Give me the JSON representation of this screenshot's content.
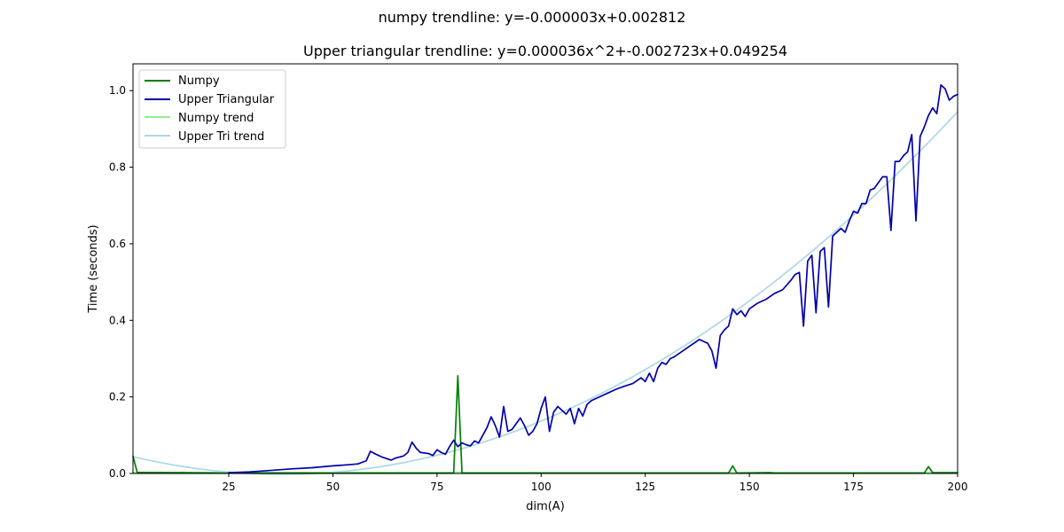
{
  "chart_data": {
    "type": "line",
    "title": "numpy trendline: y=-0.000003x+0.002812",
    "subtitle": "Upper triangular trendline: y=0.000036x^2+-0.002723x+0.049254",
    "xlabel": "dim(A)",
    "ylabel": "Time (seconds)",
    "xlim": [
      2,
      200
    ],
    "ylim": [
      0,
      1.07
    ],
    "xticks": [
      25,
      50,
      75,
      100,
      125,
      150,
      175,
      200
    ],
    "yticks": [
      0.0,
      0.2,
      0.4,
      0.6,
      0.8,
      1.0
    ],
    "xtick_labels": [
      "25",
      "50",
      "75",
      "100",
      "125",
      "150",
      "175",
      "200"
    ],
    "ytick_labels": [
      "0.0",
      "0.2",
      "0.4",
      "0.6",
      "0.8",
      "1.0"
    ],
    "grid": false,
    "legend_position": "top-left",
    "series": [
      {
        "name": "Numpy",
        "color": "#008000",
        "points": [
          [
            2,
            0.045
          ],
          [
            3,
            0.003
          ],
          [
            25,
            0.001
          ],
          [
            50,
            0.001
          ],
          [
            75,
            0.001
          ],
          [
            79,
            0.001
          ],
          [
            80,
            0.255
          ],
          [
            81,
            0.001
          ],
          [
            100,
            0.001
          ],
          [
            125,
            0.001
          ],
          [
            145,
            0.001
          ],
          [
            146,
            0.02
          ],
          [
            147,
            0.001
          ],
          [
            155,
            0.002
          ],
          [
            156,
            0.001
          ],
          [
            175,
            0.001
          ],
          [
            192,
            0.001
          ],
          [
            193,
            0.018
          ],
          [
            194,
            0.002
          ],
          [
            200,
            0.002
          ]
        ]
      },
      {
        "name": "Upper Triangular",
        "color": "#0000aa",
        "points": [
          [
            25,
            0.002
          ],
          [
            30,
            0.004
          ],
          [
            35,
            0.008
          ],
          [
            40,
            0.012
          ],
          [
            45,
            0.015
          ],
          [
            50,
            0.02
          ],
          [
            54,
            0.023
          ],
          [
            56,
            0.025
          ],
          [
            58,
            0.033
          ],
          [
            59,
            0.058
          ],
          [
            60,
            0.052
          ],
          [
            62,
            0.042
          ],
          [
            64,
            0.035
          ],
          [
            65,
            0.04
          ],
          [
            67,
            0.046
          ],
          [
            68,
            0.055
          ],
          [
            69,
            0.082
          ],
          [
            70,
            0.066
          ],
          [
            71,
            0.055
          ],
          [
            73,
            0.052
          ],
          [
            74,
            0.047
          ],
          [
            75,
            0.062
          ],
          [
            76,
            0.055
          ],
          [
            77,
            0.05
          ],
          [
            78,
            0.07
          ],
          [
            79,
            0.087
          ],
          [
            80,
            0.07
          ],
          [
            81,
            0.08
          ],
          [
            82,
            0.075
          ],
          [
            83,
            0.072
          ],
          [
            84,
            0.085
          ],
          [
            85,
            0.08
          ],
          [
            86,
            0.1
          ],
          [
            87,
            0.12
          ],
          [
            88,
            0.148
          ],
          [
            89,
            0.125
          ],
          [
            90,
            0.095
          ],
          [
            91,
            0.175
          ],
          [
            92,
            0.11
          ],
          [
            93,
            0.115
          ],
          [
            94,
            0.13
          ],
          [
            95,
            0.145
          ],
          [
            96,
            0.125
          ],
          [
            97,
            0.1
          ],
          [
            98,
            0.11
          ],
          [
            99,
            0.13
          ],
          [
            100,
            0.17
          ],
          [
            101,
            0.2
          ],
          [
            102,
            0.11
          ],
          [
            103,
            0.16
          ],
          [
            104,
            0.175
          ],
          [
            105,
            0.165
          ],
          [
            106,
            0.155
          ],
          [
            107,
            0.17
          ],
          [
            108,
            0.13
          ],
          [
            109,
            0.17
          ],
          [
            110,
            0.15
          ],
          [
            111,
            0.18
          ],
          [
            112,
            0.19
          ],
          [
            114,
            0.2
          ],
          [
            116,
            0.21
          ],
          [
            118,
            0.22
          ],
          [
            120,
            0.228
          ],
          [
            122,
            0.235
          ],
          [
            124,
            0.25
          ],
          [
            125,
            0.24
          ],
          [
            126,
            0.262
          ],
          [
            127,
            0.24
          ],
          [
            128,
            0.275
          ],
          [
            129,
            0.29
          ],
          [
            130,
            0.285
          ],
          [
            131,
            0.3
          ],
          [
            132,
            0.305
          ],
          [
            134,
            0.32
          ],
          [
            136,
            0.335
          ],
          [
            138,
            0.35
          ],
          [
            140,
            0.34
          ],
          [
            141,
            0.32
          ],
          [
            142,
            0.275
          ],
          [
            143,
            0.36
          ],
          [
            144,
            0.375
          ],
          [
            145,
            0.385
          ],
          [
            146,
            0.43
          ],
          [
            147,
            0.415
          ],
          [
            148,
            0.425
          ],
          [
            149,
            0.41
          ],
          [
            150,
            0.43
          ],
          [
            152,
            0.445
          ],
          [
            154,
            0.455
          ],
          [
            156,
            0.47
          ],
          [
            158,
            0.48
          ],
          [
            160,
            0.505
          ],
          [
            161,
            0.52
          ],
          [
            162,
            0.525
          ],
          [
            163,
            0.385
          ],
          [
            164,
            0.555
          ],
          [
            165,
            0.57
          ],
          [
            166,
            0.42
          ],
          [
            167,
            0.58
          ],
          [
            168,
            0.59
          ],
          [
            169,
            0.435
          ],
          [
            170,
            0.62
          ],
          [
            172,
            0.64
          ],
          [
            173,
            0.63
          ],
          [
            174,
            0.66
          ],
          [
            175,
            0.685
          ],
          [
            176,
            0.68
          ],
          [
            177,
            0.705
          ],
          [
            178,
            0.705
          ],
          [
            179,
            0.74
          ],
          [
            180,
            0.745
          ],
          [
            181,
            0.76
          ],
          [
            182,
            0.775
          ],
          [
            183,
            0.775
          ],
          [
            184,
            0.635
          ],
          [
            185,
            0.815
          ],
          [
            186,
            0.815
          ],
          [
            187,
            0.83
          ],
          [
            188,
            0.84
          ],
          [
            189,
            0.885
          ],
          [
            190,
            0.66
          ],
          [
            191,
            0.88
          ],
          [
            192,
            0.905
          ],
          [
            193,
            0.935
          ],
          [
            194,
            0.955
          ],
          [
            195,
            0.94
          ],
          [
            196,
            1.015
          ],
          [
            197,
            1.005
          ],
          [
            198,
            0.975
          ],
          [
            199,
            0.985
          ],
          [
            200,
            0.99
          ]
        ]
      },
      {
        "name": "Numpy trend",
        "color": "#90ee90",
        "coefficients": [
          -3e-06,
          0.002812
        ]
      },
      {
        "name": "Upper Tri trend",
        "color": "#add8e6",
        "coefficients": [
          3.6e-05,
          -0.002723,
          0.049254
        ]
      }
    ]
  }
}
